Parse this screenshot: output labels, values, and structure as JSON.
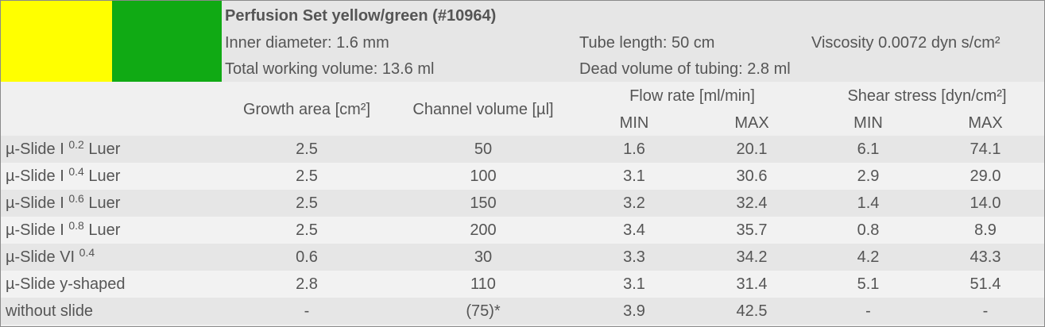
{
  "colors": {
    "swatch1": "#ffff00",
    "swatch2": "#10aa14",
    "text": "#555555"
  },
  "info": {
    "title": "Perfusion Set yellow/green (#10964)",
    "inner_diameter": "Inner diameter: 1.6 mm",
    "tube_length": "Tube length: 50 cm",
    "viscosity": "Viscosity 0.0072 dyn s/cm²",
    "total_volume": "Total working volume: 13.6 ml",
    "dead_volume": "Dead volume of tubing: 2.8 ml"
  },
  "headers": {
    "growth_area": "Growth area [cm²]",
    "channel_volume": "Channel volume [µl]",
    "flow_rate": "Flow rate [ml/min]",
    "shear_stress": "Shear stress [dyn/cm²]",
    "flow_min": "MIN",
    "flow_max": "MAX",
    "shear_min": "MIN",
    "shear_max": "MAX"
  },
  "rows": [
    {
      "name": "µ-Slide I",
      "sup": "0.2",
      "suffix": "Luer",
      "growth": "2.5",
      "volume": "50",
      "flow_min": "1.6",
      "flow_max": "20.1",
      "shear_min": "6.1",
      "shear_max": "74.1"
    },
    {
      "name": "µ-Slide I",
      "sup": "0.4",
      "suffix": "Luer",
      "growth": "2.5",
      "volume": "100",
      "flow_min": "3.1",
      "flow_max": "30.6",
      "shear_min": "2.9",
      "shear_max": "29.0"
    },
    {
      "name": "µ-Slide I",
      "sup": "0.6",
      "suffix": "Luer",
      "growth": "2.5",
      "volume": "150",
      "flow_min": "3.2",
      "flow_max": "32.4",
      "shear_min": "1.4",
      "shear_max": "14.0"
    },
    {
      "name": "µ-Slide I",
      "sup": "0.8",
      "suffix": "Luer",
      "growth": "2.5",
      "volume": "200",
      "flow_min": "3.4",
      "flow_max": "35.7",
      "shear_min": "0.8",
      "shear_max": "8.9"
    },
    {
      "name": "µ-Slide VI",
      "sup": "0.4",
      "suffix": "",
      "growth": "0.6",
      "volume": "30",
      "flow_min": "3.3",
      "flow_max": "34.2",
      "shear_min": "4.2",
      "shear_max": "43.3"
    },
    {
      "name": "µ-Slide y-shaped",
      "sup": "",
      "suffix": "",
      "growth": "2.8",
      "volume": "110",
      "flow_min": "3.1",
      "flow_max": "31.4",
      "shear_min": "5.1",
      "shear_max": "51.4"
    },
    {
      "name": "without slide",
      "sup": "",
      "suffix": "",
      "growth": "-",
      "volume": "(75)*",
      "flow_min": "3.9",
      "flow_max": "42.5",
      "shear_min": "-",
      "shear_max": "-"
    }
  ]
}
